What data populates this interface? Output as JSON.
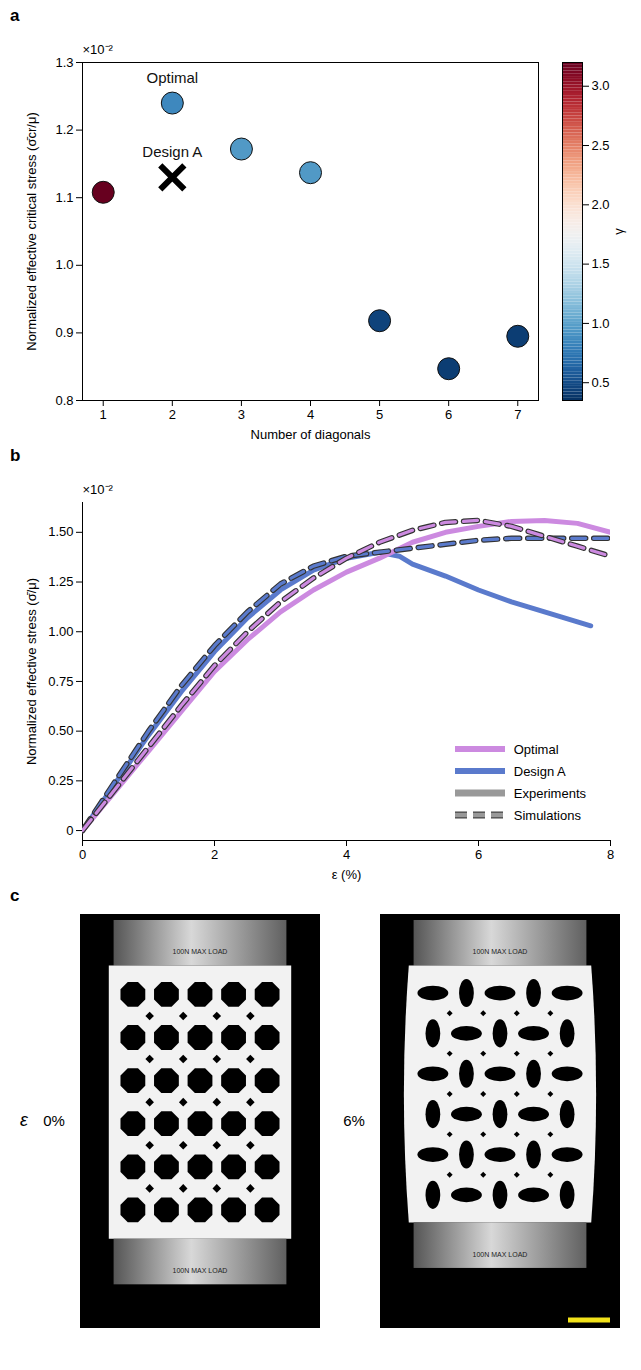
{
  "chart_data": [
    {
      "title": "a",
      "type": "scatter",
      "x_label": "Number of diagonals",
      "y_label": "Normalized effective critical stress (σ̄cr/μ)",
      "y_multiplier": "×10⁻²",
      "xlim": [
        0.7,
        7.3
      ],
      "xticks": [
        1,
        2,
        3,
        4,
        5,
        6,
        7
      ],
      "ylim": [
        0.8,
        1.3
      ],
      "yticks": [
        0.8,
        0.9,
        {
          "value": 1,
          "label": "1.0"
        },
        1.1,
        1.2,
        1.3
      ],
      "series": [
        {
          "marker": "circle",
          "x": [
            1,
            2,
            3,
            4,
            5,
            6,
            7
          ],
          "values": [
            1.108,
            1.24,
            1.172,
            1.137,
            0.918,
            0.847,
            0.895
          ],
          "gamma": [
            3.2,
            0.85,
            0.95,
            0.95,
            0.45,
            0.42,
            0.42
          ]
        },
        {
          "marker": "x",
          "color": "#000000",
          "x": [
            2
          ],
          "values": [
            1.13
          ]
        }
      ],
      "colorbar": {
        "label": "γ",
        "lim": [
          0.35,
          3.2
        ],
        "ticks": [
          0.5,
          {
            "value": 1,
            "label": "1.0"
          },
          1.5,
          {
            "value": 2,
            "label": "2.0"
          },
          2.5,
          {
            "value": 3,
            "label": "3.0"
          }
        ]
      },
      "annotations": [
        {
          "text": "Optimal",
          "x": 2,
          "y": 1.24
        },
        {
          "text": "Design A",
          "x": 2,
          "y": 1.13
        }
      ]
    },
    {
      "title": "b",
      "type": "line",
      "x_label": "ε (%)",
      "y_label": "Normalized effective stress (σ̄/μ)",
      "y_multiplier": "×10⁻²",
      "xlim": [
        0,
        8
      ],
      "xticks": [
        0,
        2,
        4,
        6,
        8
      ],
      "ylim": [
        -0.05,
        1.65
      ],
      "yticks": [
        0,
        0.25,
        {
          "value": 0.5,
          "label": "0.50"
        },
        0.75,
        {
          "value": 1,
          "label": "1.00"
        },
        1.25,
        {
          "value": 1.5,
          "label": "1.50"
        }
      ],
      "legend": "lower right",
      "legend_entries": [
        {
          "name": "Optimal",
          "color": "#cc8ae0"
        },
        {
          "name": "Design A",
          "color": "#5a7acc"
        },
        {
          "name": "Experiments",
          "line_style": "solid"
        },
        {
          "name": "Simulations",
          "line_style": "dashed"
        }
      ],
      "series": [
        {
          "design": "Design A",
          "kind": "Experiments",
          "color": "#5a7acc",
          "line_style": "solid",
          "x": [
            0,
            0.5,
            1,
            1.5,
            2,
            2.5,
            3,
            3.5,
            4,
            4.5,
            4.8,
            5,
            5.5,
            6,
            6.5,
            7,
            7.5,
            7.7
          ],
          "values": [
            0,
            0.24,
            0.48,
            0.7,
            0.9,
            1.07,
            1.21,
            1.31,
            1.37,
            1.4,
            1.38,
            1.34,
            1.28,
            1.21,
            1.15,
            1.1,
            1.05,
            1.03
          ]
        },
        {
          "design": "Optimal",
          "kind": "Experiments",
          "color": "#cc8ae0",
          "line_style": "solid",
          "x": [
            0,
            0.5,
            1,
            1.5,
            2,
            2.5,
            3,
            3.5,
            4,
            4.5,
            5,
            5.5,
            6,
            6.5,
            7,
            7.5,
            8
          ],
          "values": [
            0,
            0.2,
            0.4,
            0.6,
            0.8,
            0.96,
            1.1,
            1.21,
            1.3,
            1.37,
            1.45,
            1.5,
            1.53,
            1.555,
            1.56,
            1.545,
            1.5
          ]
        },
        {
          "design": "Design A",
          "kind": "Simulations",
          "color": "#5a7acc",
          "line_style": "dashed",
          "x": [
            0,
            0.5,
            1,
            1.5,
            2,
            2.5,
            3,
            3.5,
            4,
            4.5,
            5,
            5.5,
            6,
            6.5,
            7,
            7.5,
            8
          ],
          "values": [
            0,
            0.25,
            0.5,
            0.73,
            0.93,
            1.1,
            1.24,
            1.33,
            1.38,
            1.4,
            1.42,
            1.44,
            1.46,
            1.47,
            1.47,
            1.47,
            1.47
          ]
        },
        {
          "design": "Optimal",
          "kind": "Simulations",
          "color": "#cc8ae0",
          "line_style": "dashed",
          "x": [
            0,
            0.5,
            1,
            1.5,
            2,
            2.5,
            3,
            3.5,
            4,
            4.5,
            5,
            5.5,
            6,
            6.5,
            7,
            7.5,
            8
          ],
          "values": [
            0,
            0.21,
            0.42,
            0.63,
            0.83,
            1.0,
            1.15,
            1.27,
            1.37,
            1.45,
            1.51,
            1.55,
            1.56,
            1.53,
            1.48,
            1.43,
            1.38
          ]
        }
      ]
    }
  ],
  "panel_c": {
    "title": "c",
    "row_label": "ε",
    "platen_text": "100N MAX LOAD",
    "images": [
      {
        "label": "0%"
      },
      {
        "label": "6%"
      }
    ]
  }
}
